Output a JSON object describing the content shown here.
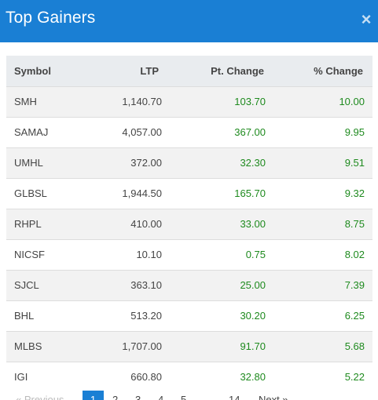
{
  "modal": {
    "title": "Top Gainers",
    "close_symbol": "×"
  },
  "table": {
    "headers": {
      "symbol": "Symbol",
      "ltp": "LTP",
      "pt_change": "Pt. Change",
      "pct_change": "% Change"
    },
    "rows": [
      {
        "symbol": "SMH",
        "ltp": "1,140.70",
        "pt_change": "103.70",
        "pct_change": "10.00"
      },
      {
        "symbol": "SAMAJ",
        "ltp": "4,057.00",
        "pt_change": "367.00",
        "pct_change": "9.95"
      },
      {
        "symbol": "UMHL",
        "ltp": "372.00",
        "pt_change": "32.30",
        "pct_change": "9.51"
      },
      {
        "symbol": "GLBSL",
        "ltp": "1,944.50",
        "pt_change": "165.70",
        "pct_change": "9.32"
      },
      {
        "symbol": "RHPL",
        "ltp": "410.00",
        "pt_change": "33.00",
        "pct_change": "8.75"
      },
      {
        "symbol": "NICSF",
        "ltp": "10.10",
        "pt_change": "0.75",
        "pct_change": "8.02"
      },
      {
        "symbol": "SJCL",
        "ltp": "363.10",
        "pt_change": "25.00",
        "pct_change": "7.39"
      },
      {
        "symbol": "BHL",
        "ltp": "513.20",
        "pt_change": "30.20",
        "pct_change": "6.25"
      },
      {
        "symbol": "MLBS",
        "ltp": "1,707.00",
        "pt_change": "91.70",
        "pct_change": "5.68"
      },
      {
        "symbol": "IGI",
        "ltp": "660.80",
        "pt_change": "32.80",
        "pct_change": "5.22"
      }
    ]
  },
  "pagination": {
    "prev_label": "« Previous",
    "pages": [
      "1",
      "2",
      "3",
      "4",
      "5"
    ],
    "ellipsis": "…",
    "last_page": "14",
    "next_label": "Next »",
    "active_page": "1"
  },
  "colors": {
    "header_bg": "#1a7fd4",
    "positive": "#1e8a1e"
  }
}
